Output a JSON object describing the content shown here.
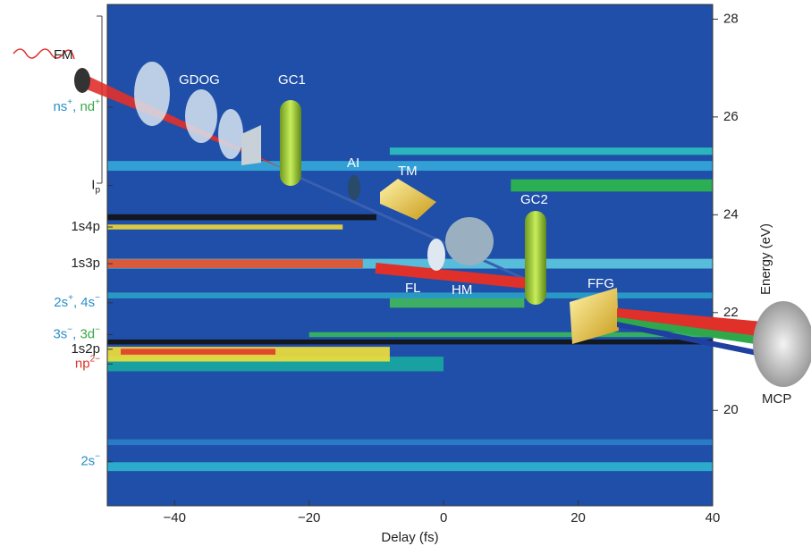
{
  "chart_data": {
    "type": "heatmap",
    "x_label": "Delay (fs)",
    "y_label": "Energy (eV)",
    "xlim": [
      -50,
      40
    ],
    "xticks": [
      {
        "value": -40,
        "label": "−40"
      },
      {
        "value": -20,
        "label": "−20"
      },
      0,
      20,
      40
    ],
    "ylim": [
      18.05,
      28.3
    ],
    "yticks": [
      20,
      22,
      24,
      26,
      28
    ],
    "background": "#1f4fa8",
    "bands": [
      {
        "energy": 18.85,
        "height": 0.18,
        "xlim": [
          -50,
          40
        ],
        "color": "#2fb5d0"
      },
      {
        "energy": 19.35,
        "height": 0.12,
        "xlim": [
          -50,
          40
        ],
        "color": "#2a80c8"
      },
      {
        "energy": 20.95,
        "height": 0.3,
        "xlim": [
          -50,
          0
        ],
        "color": "#18a8a0"
      },
      {
        "energy": 21.15,
        "height": 0.3,
        "xlim": [
          -50,
          -8
        ],
        "color": "#f2e038"
      },
      {
        "energy": 21.2,
        "height": 0.12,
        "xlim": [
          -48,
          -25
        ],
        "color": "#e23a2a"
      },
      {
        "energy": 21.4,
        "height": 0.1,
        "xlim": [
          -50,
          40
        ],
        "color": "#111111"
      },
      {
        "energy": 21.55,
        "height": 0.1,
        "xlim": [
          -20,
          40
        ],
        "color": "#35b85a"
      },
      {
        "energy": 22.2,
        "height": 0.2,
        "xlim": [
          -8,
          12
        ],
        "color": "#40b85a"
      },
      {
        "energy": 22.35,
        "height": 0.12,
        "xlim": [
          -50,
          40
        ],
        "color": "#2aa0c8"
      },
      {
        "energy": 23.0,
        "height": 0.2,
        "xlim": [
          -50,
          40
        ],
        "color": "#5ec8e0"
      },
      {
        "energy": 23.0,
        "height": 0.18,
        "xlim": [
          -50,
          -12
        ],
        "color": "#e8502a"
      },
      {
        "energy": 23.75,
        "height": 0.1,
        "xlim": [
          -50,
          -15
        ],
        "color": "#f0d838"
      },
      {
        "energy": 23.95,
        "height": 0.12,
        "xlim": [
          -50,
          -10
        ],
        "color": "#111111"
      },
      {
        "energy": 24.6,
        "height": 0.25,
        "xlim": [
          10,
          40
        ],
        "color": "#2db84a"
      },
      {
        "energy": 25.0,
        "height": 0.2,
        "xlim": [
          -50,
          40
        ],
        "color": "#34a8d8"
      },
      {
        "energy": 25.3,
        "height": 0.15,
        "xlim": [
          -8,
          40
        ],
        "color": "#2bc0c0"
      }
    ],
    "annotations": [
      {
        "energy": 26.2,
        "parts": [
          {
            "text": "ns",
            "color": "#2a8fc8"
          },
          {
            "text": "+",
            "color": "#2a8fc8",
            "sup": true
          },
          {
            "text": ", ",
            "color": "#2a8fc8"
          },
          {
            "text": "nd",
            "color": "#3aa84a"
          },
          {
            "text": "+",
            "color": "#3aa84a",
            "sup": true
          }
        ]
      },
      {
        "energy": 24.6,
        "parts": [
          {
            "text": "I",
            "color": "#222222"
          },
          {
            "text": "p",
            "color": "#222222",
            "sub": true
          }
        ]
      },
      {
        "energy": 23.75,
        "parts": [
          {
            "text": "1s4p",
            "color": "#222222"
          }
        ]
      },
      {
        "energy": 23.0,
        "parts": [
          {
            "text": "1s3p",
            "color": "#222222"
          }
        ]
      },
      {
        "energy": 22.2,
        "parts": [
          {
            "text": "2s",
            "color": "#2a8fc8"
          },
          {
            "text": "+",
            "color": "#2a8fc8",
            "sup": true
          },
          {
            "text": ", 4s",
            "color": "#2a8fc8"
          },
          {
            "text": "−",
            "color": "#2a8fc8",
            "sup": true
          }
        ]
      },
      {
        "energy": 21.55,
        "parts": [
          {
            "text": "3s",
            "color": "#2a8fc8"
          },
          {
            "text": "−",
            "color": "#2a8fc8",
            "sup": true
          },
          {
            "text": ", ",
            "color": "#2a8fc8"
          },
          {
            "text": "3d",
            "color": "#3aa84a"
          },
          {
            "text": "−",
            "color": "#3aa84a",
            "sup": true
          }
        ]
      },
      {
        "energy": 21.25,
        "parts": [
          {
            "text": "1s2p",
            "color": "#222222"
          }
        ]
      },
      {
        "energy": 20.95,
        "parts": [
          {
            "text": "np",
            "color": "#d8342a"
          },
          {
            "text": "2−",
            "color": "#d8342a",
            "sup": true
          }
        ]
      },
      {
        "energy": 18.95,
        "parts": [
          {
            "text": "2s",
            "color": "#2a8fc8"
          },
          {
            "text": "−",
            "color": "#2a8fc8",
            "sup": true
          }
        ]
      }
    ]
  },
  "schematic": {
    "labels": [
      "FM",
      "GDOG",
      "GC1",
      "AI",
      "TM",
      "GC2",
      "FL",
      "HM",
      "FFG",
      "MCP"
    ]
  }
}
